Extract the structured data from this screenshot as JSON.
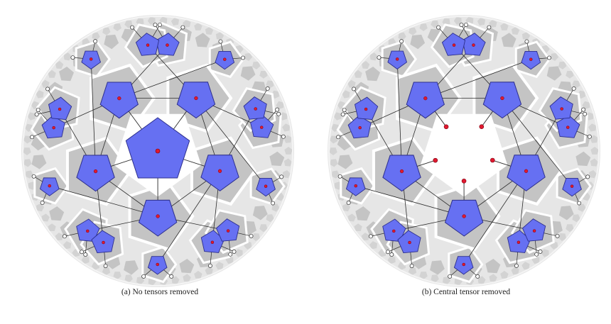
{
  "figure": {
    "panels": [
      {
        "id": "a",
        "caption": "(a) No tensors removed",
        "central_removed": false
      },
      {
        "id": "b",
        "caption": "(b) Central tensor removed",
        "central_removed": true
      }
    ],
    "colors": {
      "tensor_fill": "#6670f2",
      "tensor_stroke": "#2d2f8c",
      "tile_gray": "#c4c4c4",
      "tile_light": "#e6e6e6",
      "bulk_dot": "#e0192f",
      "edge": "#2b2b2b",
      "open_leg": "#ffffff"
    },
    "icons": {
      "tensor": "pentagon-node",
      "bulk_index": "red-dot",
      "boundary_index": "open-circle"
    }
  }
}
